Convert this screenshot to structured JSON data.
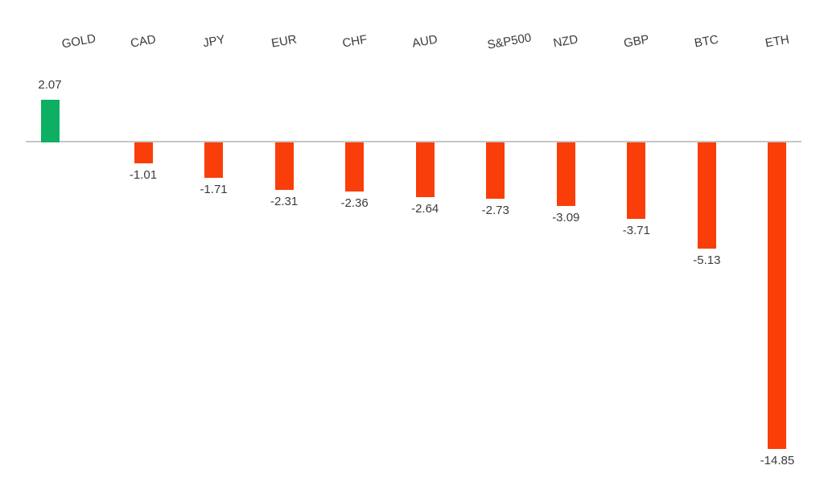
{
  "chart_data": {
    "type": "bar",
    "categories": [
      "GOLD",
      "CAD",
      "JPY",
      "EUR",
      "CHF",
      "AUD",
      "S&P500",
      "NZD",
      "GBP",
      "BTC",
      "ETH"
    ],
    "values": [
      2.07,
      -1.01,
      -1.71,
      -2.31,
      -2.36,
      -2.64,
      -2.73,
      -3.09,
      -3.71,
      -5.13,
      -14.85
    ],
    "value_labels": [
      "2.07",
      "-1.01",
      "-1.71",
      "-2.31",
      "-2.36",
      "-2.64",
      "-2.73",
      "-3.09",
      "-3.71",
      "-5.13",
      "-14.85"
    ],
    "title": "",
    "xlabel": "",
    "ylabel": "",
    "ylim": [
      -15.5,
      2.5
    ],
    "grid": false,
    "legend": null,
    "data_labels": "outside-end",
    "category_label_position": "top",
    "colors": {
      "positive_bar": "#0daf62",
      "negative_bar": "#fa3e09",
      "axis_line": "#c6c6c6",
      "label_text": "#3b3b3b"
    }
  }
}
